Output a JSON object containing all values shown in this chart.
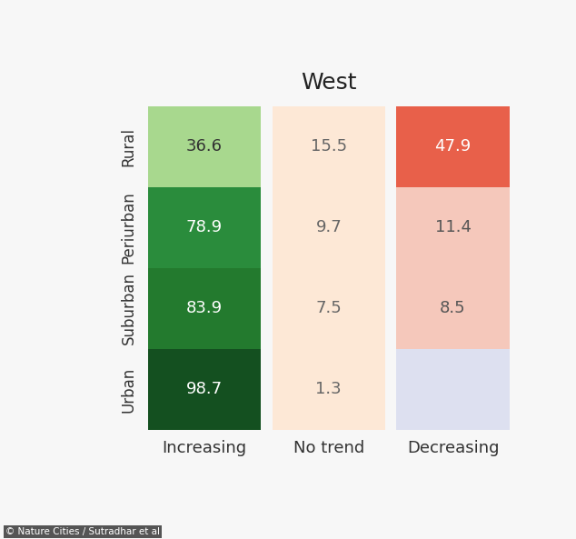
{
  "title": "West",
  "rows": [
    "Rural",
    "Periurban",
    "Suburban",
    "Urban"
  ],
  "columns": [
    "Increasing",
    "No trend",
    "Decreasing"
  ],
  "values": {
    "Increasing": [
      36.6,
      78.9,
      83.9,
      98.7
    ],
    "No trend": [
      15.5,
      9.7,
      7.5,
      1.3
    ],
    "Decreasing": [
      47.9,
      11.4,
      8.5,
      null
    ]
  },
  "colors": {
    "Increasing": [
      "#a8d88e",
      "#2a8c3c",
      "#237a2e",
      "#145020"
    ],
    "No trend": [
      "#fde8d6",
      "#fde8d6",
      "#fde8d6",
      "#fde8d6"
    ],
    "Decreasing": [
      "#e8604a",
      "#f5c8bb",
      "#f5c8bb",
      "#dde0f0"
    ]
  },
  "text_colors": {
    "Increasing": [
      "#333333",
      "#ffffff",
      "#ffffff",
      "#ffffff"
    ],
    "No trend": [
      "#666666",
      "#666666",
      "#666666",
      "#666666"
    ],
    "Decreasing": [
      "#ffffff",
      "#555555",
      "#555555",
      "#555555"
    ]
  },
  "background_color": "#f7f7f7",
  "title_fontsize": 18,
  "row_label_fontsize": 12,
  "value_fontsize": 13,
  "col_label_fontsize": 13,
  "watermark": "© Nature Cities / Sutradhar et al",
  "watermark_fontsize": 7.5
}
